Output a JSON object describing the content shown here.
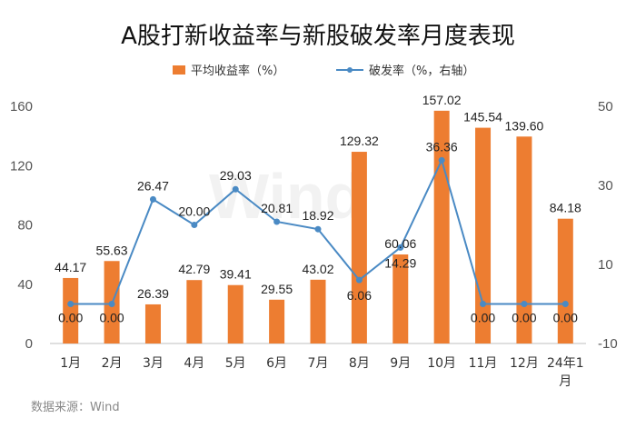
{
  "chart_data": {
    "type": "bar+line",
    "title": "A股打新收益率与新股破发率月度表现",
    "categories": [
      "1月",
      "2月",
      "3月",
      "4月",
      "5月",
      "6月",
      "7月",
      "8月",
      "9月",
      "10月",
      "11月",
      "12月",
      "24年1月"
    ],
    "series": [
      {
        "name": "平均收益率（%）",
        "type": "bar",
        "axis": "left",
        "color": "#ED7D31",
        "values": [
          44.17,
          55.63,
          26.39,
          42.79,
          39.41,
          29.55,
          43.02,
          129.32,
          60.06,
          157.02,
          145.54,
          139.6,
          84.18
        ],
        "labels": [
          "44.17",
          "55.63",
          "26.39",
          "42.79",
          "39.41",
          "29.55",
          "43.02",
          "129.32",
          "60.06",
          "157.02",
          "145.54",
          "139.60",
          "84.18"
        ]
      },
      {
        "name": "破发率（%，右轴）",
        "type": "line",
        "axis": "right",
        "color": "#4A8AC4",
        "values": [
          0.0,
          0.0,
          26.47,
          20.0,
          29.03,
          20.81,
          18.92,
          6.06,
          14.29,
          36.36,
          0.0,
          0.0,
          0.0
        ],
        "labels": [
          "0.00",
          "0.00",
          "26.47",
          "20.00",
          "29.03",
          "20.81",
          "18.92",
          "6.06",
          "14.29",
          "36.36",
          "0.00",
          "0.00",
          "0.00"
        ]
      }
    ],
    "left_axis": {
      "min": 0,
      "max": 160,
      "ticks": [
        0,
        40,
        80,
        120,
        160
      ]
    },
    "right_axis": {
      "min": -10,
      "max": 50,
      "ticks": [
        -10,
        10,
        30,
        50
      ]
    },
    "legend_position": "top",
    "grid": false
  },
  "source": "数据来源：Wind",
  "watermark": "Wind"
}
